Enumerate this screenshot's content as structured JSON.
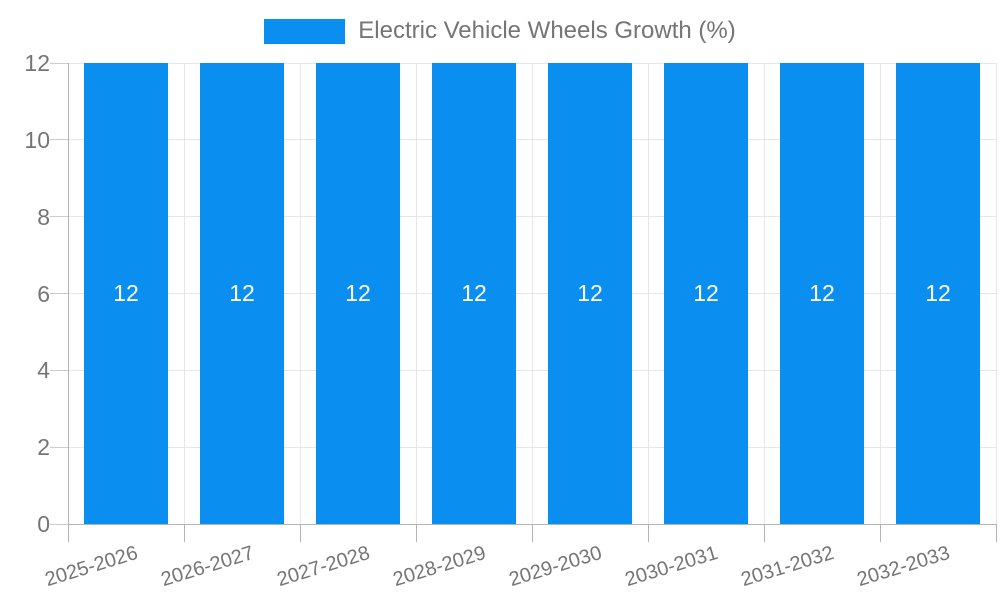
{
  "chart_data": {
    "type": "bar",
    "title": "Electric Vehicle Wheels Growth (%)",
    "categories": [
      "2025-2026",
      "2026-2027",
      "2027-2028",
      "2028-2029",
      "2029-2030",
      "2030-2031",
      "2031-2032",
      "2032-2033"
    ],
    "values": [
      12,
      12,
      12,
      12,
      12,
      12,
      12,
      12
    ],
    "bar_labels": [
      "12",
      "12",
      "12",
      "12",
      "12",
      "12",
      "12",
      "12"
    ],
    "xlabel": "",
    "ylabel": "",
    "ylim": [
      0,
      12
    ],
    "yticks": [
      0,
      2,
      4,
      6,
      8,
      10,
      12
    ],
    "grid": true,
    "legend_position": "top-center",
    "x_label_rotation_deg": -17
  },
  "legend": {
    "label": "Electric Vehicle Wheels Growth (%)"
  },
  "colors": {
    "bar": "#0a8ff0",
    "bar_label": "#ffffff",
    "gridline": "#e6e6e6",
    "axis": "#b3b3b3",
    "ytick_mark": "#cccccc",
    "tick_text": "#757575",
    "legend_text": "#757575",
    "background": "#ffffff"
  }
}
